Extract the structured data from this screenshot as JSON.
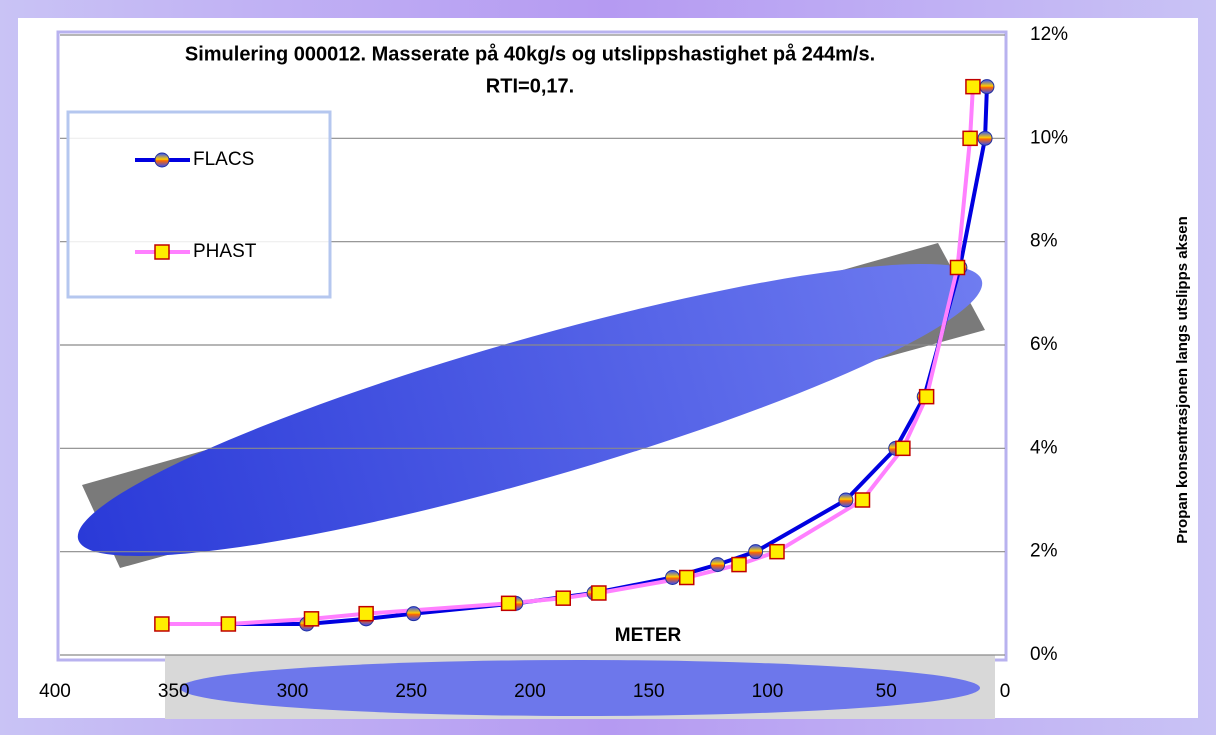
{
  "chart_data": {
    "type": "line",
    "title": "Simulering 000012. Masserate på 40kg/s og utslippshastighet på 244m/s.",
    "subtitle": "RTI=0,17.",
    "x_label": "METER",
    "y_label": "Propan konsentrasjonen langs utslipps aksen",
    "x_reversed": true,
    "xlim": [
      400,
      0
    ],
    "xticks": [
      400,
      350,
      300,
      250,
      200,
      150,
      100,
      50,
      0
    ],
    "ylim": [
      0,
      12
    ],
    "yticks": [
      {
        "value": 0,
        "label": "0%"
      },
      {
        "value": 2,
        "label": "2%"
      },
      {
        "value": 4,
        "label": "4%"
      },
      {
        "value": 6,
        "label": "6%"
      },
      {
        "value": 8,
        "label": "8%"
      },
      {
        "value": 10,
        "label": "10%"
      },
      {
        "value": 12,
        "label": "12%"
      }
    ],
    "grid": true,
    "legend": "top-left",
    "series": [
      {
        "name": "FLACS",
        "color": "#0000e0",
        "x": [
          7.6,
          8.4,
          19,
          34,
          46,
          67,
          105,
          121,
          140,
          173,
          206,
          249,
          269,
          294,
          327
        ],
        "values": [
          11,
          10,
          7.5,
          5,
          4,
          3,
          2,
          1.75,
          1.5,
          1.2,
          1,
          0.8,
          0.7,
          0.6,
          0.6
        ]
      },
      {
        "name": "PHAST",
        "color": "#ff80ff",
        "x": [
          13.5,
          14.7,
          20,
          33,
          43,
          60,
          96,
          112,
          134,
          171,
          186,
          209,
          269,
          292,
          327,
          355
        ],
        "values": [
          11,
          10,
          7.5,
          5,
          4,
          3,
          2,
          1.75,
          1.5,
          1.2,
          1.1,
          1,
          0.8,
          0.7,
          0.6,
          0.6
        ]
      }
    ]
  }
}
